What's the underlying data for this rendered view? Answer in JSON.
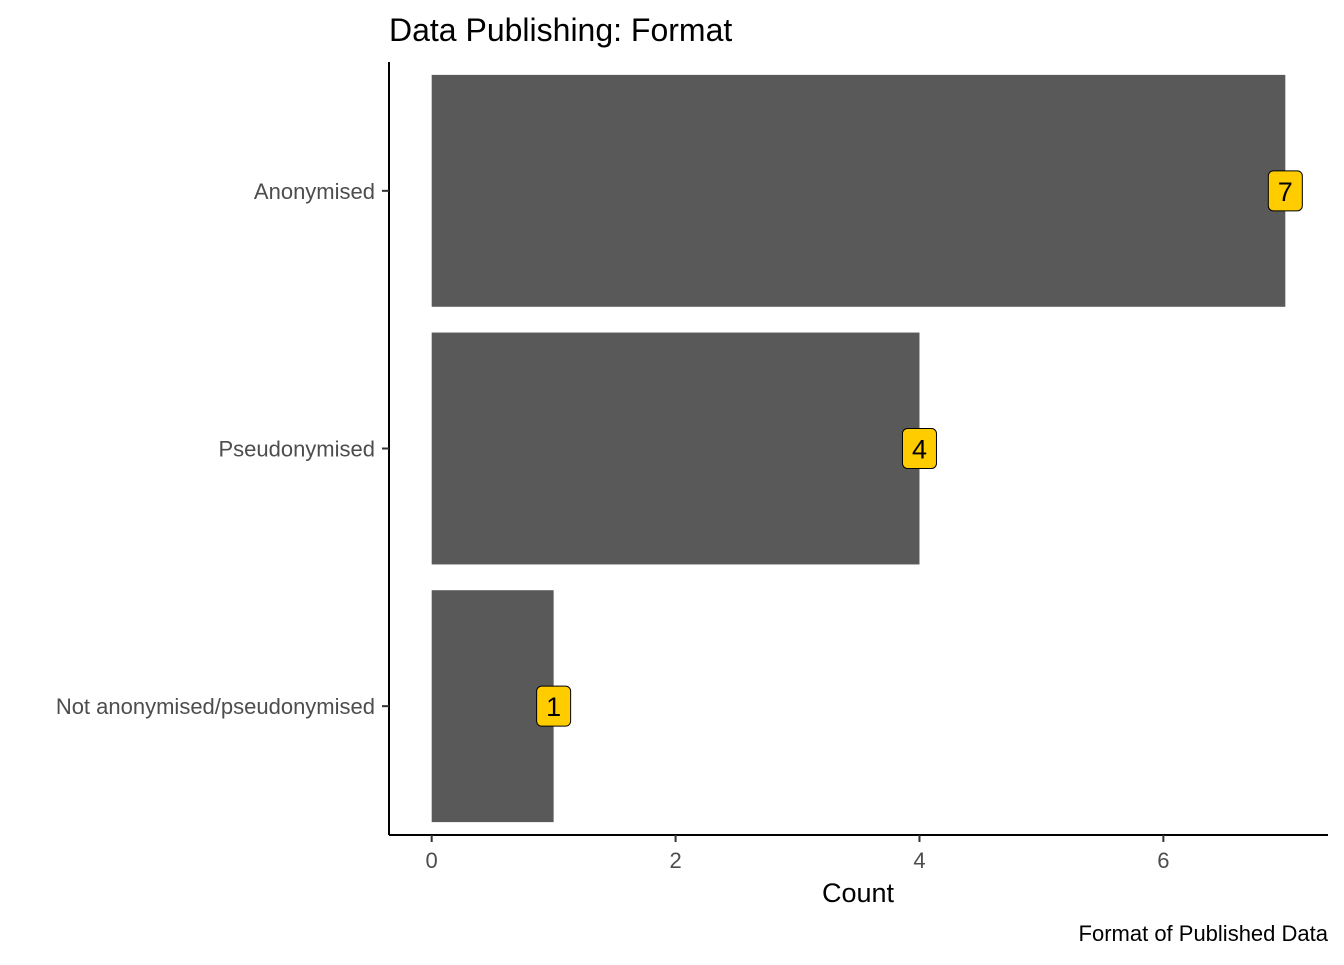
{
  "chart_data": {
    "type": "bar",
    "orientation": "horizontal",
    "title": "Data Publishing: Format",
    "xlabel": "Count",
    "ylabel": "",
    "caption": "Format of Published Data",
    "categories": [
      "Anonymised",
      "Pseudonymised",
      "Not anonymised/pseudonymised"
    ],
    "values": [
      7,
      4,
      1
    ],
    "xlim": [
      -0.35,
      7.35
    ],
    "xticks": [
      0,
      2,
      4,
      6
    ],
    "grid": false,
    "bar_color": "#595959",
    "label_fill": "#FFCC00",
    "label_border": "#000000"
  }
}
